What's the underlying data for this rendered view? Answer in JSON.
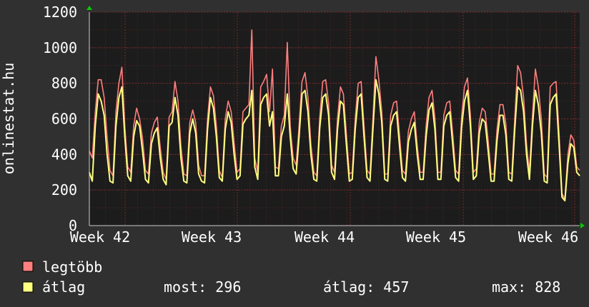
{
  "chart_data": {
    "type": "line",
    "ylabel": "onlinestat.hu",
    "ylim": [
      0,
      1200
    ],
    "yticks": [
      0,
      200,
      400,
      600,
      800,
      1000,
      1200
    ],
    "xticks": [
      "Week 42",
      "Week 43",
      "Week 44",
      "Week 45",
      "Week 46"
    ],
    "grid": true,
    "colors": {
      "background": "#303030",
      "plot": "#1c1c1c",
      "grid": "#7a2a2a",
      "axis": "#cccccc",
      "arrow": "#00cc00",
      "max_series": "#ff7f7f",
      "avg_series": "#ffff80"
    },
    "series": [
      {
        "name": "legtöbb",
        "color": "#ff7f7f",
        "values": [
          420,
          380,
          640,
          820,
          820,
          720,
          500,
          310,
          280,
          640,
          800,
          890,
          560,
          330,
          300,
          560,
          660,
          600,
          490,
          310,
          290,
          520,
          580,
          610,
          440,
          300,
          260,
          610,
          640,
          810,
          700,
          450,
          290,
          280,
          580,
          650,
          580,
          340,
          280,
          280,
          600,
          780,
          730,
          560,
          310,
          270,
          600,
          700,
          640,
          470,
          300,
          320,
          640,
          660,
          680,
          1100,
          380,
          300,
          780,
          810,
          850,
          640,
          880,
          330,
          320,
          560,
          620,
          1030,
          560,
          380,
          340,
          560,
          810,
          860,
          720,
          460,
          300,
          280,
          610,
          810,
          820,
          690,
          340,
          300,
          600,
          780,
          740,
          520,
          290,
          300,
          600,
          800,
          810,
          560,
          310,
          290,
          600,
          950,
          820,
          640,
          290,
          290,
          620,
          690,
          700,
          510,
          310,
          290,
          530,
          600,
          640,
          450,
          300,
          300,
          560,
          720,
          760,
          600,
          300,
          300,
          620,
          690,
          700,
          520,
          310,
          290,
          610,
          780,
          830,
          620,
          300,
          320,
          580,
          660,
          640,
          480,
          290,
          290,
          540,
          680,
          680,
          570,
          300,
          290,
          600,
          900,
          860,
          720,
          460,
          300,
          620,
          880,
          780,
          600,
          290,
          270,
          780,
          800,
          810,
          520,
          180,
          150,
          400,
          510,
          480,
          330,
          310
        ]
      },
      {
        "name": "átlag",
        "color": "#ffff80",
        "values": [
          300,
          250,
          560,
          740,
          700,
          620,
          400,
          250,
          240,
          560,
          720,
          780,
          500,
          280,
          250,
          500,
          590,
          560,
          420,
          260,
          240,
          460,
          520,
          550,
          380,
          260,
          230,
          560,
          580,
          720,
          620,
          380,
          250,
          240,
          520,
          600,
          520,
          290,
          250,
          240,
          540,
          720,
          660,
          500,
          270,
          250,
          540,
          640,
          580,
          400,
          260,
          280,
          570,
          600,
          620,
          760,
          330,
          260,
          680,
          720,
          740,
          560,
          640,
          280,
          280,
          500,
          560,
          740,
          500,
          320,
          290,
          500,
          740,
          760,
          640,
          400,
          260,
          250,
          550,
          720,
          740,
          620,
          300,
          260,
          540,
          700,
          680,
          460,
          250,
          260,
          540,
          720,
          740,
          500,
          270,
          250,
          540,
          820,
          740,
          580,
          260,
          250,
          560,
          620,
          640,
          450,
          270,
          250,
          470,
          540,
          580,
          400,
          260,
          260,
          500,
          650,
          690,
          540,
          260,
          260,
          560,
          620,
          640,
          460,
          270,
          250,
          550,
          700,
          760,
          560,
          260,
          280,
          520,
          600,
          580,
          420,
          250,
          250,
          480,
          620,
          620,
          510,
          260,
          250,
          540,
          780,
          760,
          640,
          400,
          260,
          560,
          760,
          680,
          520,
          250,
          240,
          680,
          720,
          740,
          460,
          160,
          140,
          350,
          460,
          440,
          300,
          280
        ]
      }
    ]
  },
  "legend": {
    "items": [
      {
        "label": "legtöbb",
        "color": "#ff7f7f"
      },
      {
        "label": "átlag",
        "color": "#ffff80"
      }
    ]
  },
  "stats": {
    "most": "most: 296",
    "atlag": "átlag: 457",
    "max": "max: 828"
  }
}
